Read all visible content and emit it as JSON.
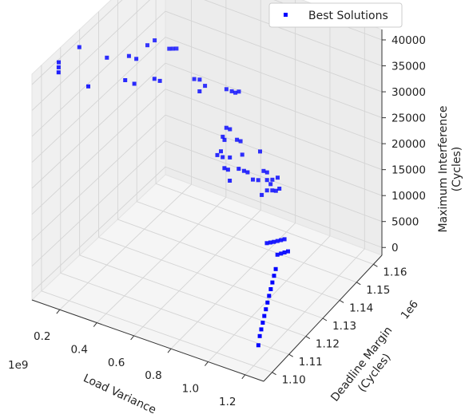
{
  "chart_data": {
    "type": "scatter",
    "projection": "3d",
    "grid": true,
    "legend_position": "top-right",
    "series": [
      {
        "name": "Best Solutions",
        "color": "#0000ff",
        "marker": "square",
        "points": [
          [
            0.08,
            1.117,
            40000
          ],
          [
            0.04,
            1.11,
            39000
          ],
          [
            0.05,
            1.109,
            38500
          ],
          [
            0.06,
            1.108,
            38000
          ],
          [
            0.18,
            1.122,
            37500
          ],
          [
            0.28,
            1.134,
            37000
          ],
          [
            0.3,
            1.136,
            37500
          ],
          [
            0.24,
            1.128,
            36500
          ],
          [
            0.26,
            1.13,
            35500
          ],
          [
            0.34,
            1.14,
            35000
          ],
          [
            0.35,
            1.141,
            34800
          ],
          [
            0.36,
            1.142,
            34600
          ],
          [
            0.15,
            1.115,
            34000
          ],
          [
            0.25,
            1.125,
            33000
          ],
          [
            0.28,
            1.127,
            32000
          ],
          [
            0.33,
            1.133,
            31500
          ],
          [
            0.35,
            1.134,
            31000
          ],
          [
            0.45,
            1.143,
            29500
          ],
          [
            0.47,
            1.144,
            29300
          ],
          [
            0.49,
            1.145,
            28000
          ],
          [
            0.48,
            1.143,
            27500
          ],
          [
            0.56,
            1.15,
            26500
          ],
          [
            0.58,
            1.151,
            26000
          ],
          [
            0.59,
            1.152,
            25500
          ],
          [
            0.6,
            1.153,
            25500
          ],
          [
            0.58,
            1.148,
            20000
          ],
          [
            0.59,
            1.149,
            19500
          ],
          [
            0.57,
            1.147,
            18500
          ],
          [
            0.58,
            1.147,
            18000
          ],
          [
            0.62,
            1.15,
            17500
          ],
          [
            0.63,
            1.151,
            17000
          ],
          [
            0.58,
            1.145,
            16500
          ],
          [
            0.57,
            1.144,
            16000
          ],
          [
            0.59,
            1.145,
            15500
          ],
          [
            0.61,
            1.147,
            15000
          ],
          [
            0.65,
            1.15,
            15000
          ],
          [
            0.7,
            1.155,
            14500
          ],
          [
            0.6,
            1.145,
            13500
          ],
          [
            0.61,
            1.146,
            13000
          ],
          [
            0.64,
            1.149,
            12500
          ],
          [
            0.66,
            1.15,
            12000
          ],
          [
            0.67,
            1.151,
            11500
          ],
          [
            0.62,
            1.146,
            11000
          ],
          [
            0.72,
            1.155,
            11000
          ],
          [
            0.73,
            1.156,
            10500
          ],
          [
            0.69,
            1.152,
            10000
          ],
          [
            0.71,
            1.153,
            9800
          ],
          [
            0.74,
            1.155,
            9500
          ],
          [
            0.75,
            1.157,
            9000
          ],
          [
            0.77,
            1.158,
            9300
          ],
          [
            0.75,
            1.156,
            8500
          ],
          [
            0.74,
            1.155,
            7500
          ],
          [
            0.73,
            1.153,
            7200
          ],
          [
            0.76,
            1.156,
            7400
          ],
          [
            0.77,
            1.157,
            7100
          ],
          [
            0.78,
            1.158,
            7300
          ],
          [
            0.82,
            1.147,
            1100
          ],
          [
            0.83,
            1.148,
            1000
          ],
          [
            0.84,
            1.149,
            900
          ],
          [
            0.85,
            1.15,
            850
          ],
          [
            0.86,
            1.151,
            800
          ],
          [
            0.87,
            1.152,
            750
          ],
          [
            0.89,
            1.146,
            100
          ],
          [
            0.9,
            1.147,
            90
          ],
          [
            0.91,
            1.148,
            80
          ],
          [
            0.92,
            1.149,
            70
          ],
          [
            0.94,
            1.14,
            30
          ],
          [
            0.96,
            1.137,
            25
          ],
          [
            0.98,
            1.134,
            20
          ],
          [
            1.0,
            1.131,
            15
          ],
          [
            1.02,
            1.128,
            12
          ],
          [
            1.04,
            1.125,
            10
          ],
          [
            1.06,
            1.122,
            8
          ],
          [
            1.08,
            1.119,
            6
          ],
          [
            1.1,
            1.116,
            5
          ],
          [
            1.12,
            1.113,
            4
          ],
          [
            1.14,
            1.11,
            3
          ],
          [
            1.17,
            1.106,
            2
          ]
        ]
      }
    ],
    "axes": {
      "x": {
        "label": "Load Variance",
        "range": [
          0.05,
          1.3
        ],
        "ticks": [
          0.2,
          0.4,
          0.6,
          0.8,
          1.0,
          1.2
        ],
        "tick_labels": [
          "0.2",
          "0.4",
          "0.6",
          "0.8",
          "1.0",
          "1.2"
        ],
        "offset_text": "1e9"
      },
      "y": {
        "label_lines": [
          "Deadline Margin",
          "(Cycles)"
        ],
        "range": [
          1.095,
          1.165
        ],
        "ticks": [
          1.1,
          1.11,
          1.12,
          1.13,
          1.14,
          1.15,
          1.16
        ],
        "tick_labels": [
          "1.10",
          "1.11",
          "1.12",
          "1.13",
          "1.14",
          "1.15",
          "1.16"
        ],
        "offset_text": "1e6"
      },
      "z": {
        "label_lines": [
          "Maximum Interference",
          "(Cycles)"
        ],
        "range": [
          -1500,
          42000
        ],
        "ticks": [
          0,
          5000,
          10000,
          15000,
          20000,
          25000,
          30000,
          35000,
          40000
        ],
        "tick_labels": [
          "0",
          "5000",
          "10000",
          "15000",
          "20000",
          "25000",
          "30000",
          "35000",
          "40000"
        ]
      }
    }
  }
}
